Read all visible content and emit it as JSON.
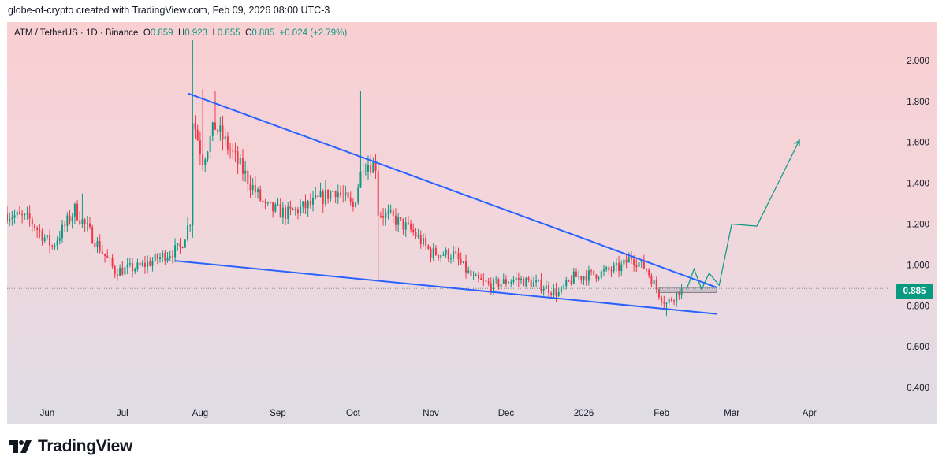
{
  "header": {
    "attribution": "globe-of-crypto created with TradingView.com, Feb 09, 2026 08:00 UTC-3"
  },
  "legend": {
    "symbol": "ATM / TetherUS · 1D · Binance",
    "open_label": "O",
    "open": "0.859",
    "high_label": "H",
    "high": "0.923",
    "low_label": "L",
    "low": "0.855",
    "close_label": "C",
    "close": "0.885",
    "change": "+0.024 (+2.79%)"
  },
  "last_price": "0.885",
  "footer": {
    "brand": "TradingView"
  },
  "colors": {
    "up": "#089981",
    "down": "#f23645",
    "trendline": "#2962ff",
    "projection": "#089981"
  },
  "chart_data": {
    "type": "candlestick",
    "y_ticks": [
      "2.000",
      "1.800",
      "1.600",
      "1.400",
      "1.200",
      "1.000",
      "0.800",
      "0.600",
      "0.400"
    ],
    "y_tick_values": [
      2.0,
      1.8,
      1.6,
      1.4,
      1.2,
      1.0,
      0.8,
      0.6,
      0.4
    ],
    "x_ticks": [
      "Jun",
      "Jul",
      "Aug",
      "Sep",
      "Oct",
      "Nov",
      "Dec",
      "2026",
      "Feb",
      "Mar",
      "Apr"
    ],
    "x_tick_dates": [
      "2025-06-01",
      "2025-07-01",
      "2025-08-01",
      "2025-09-01",
      "2025-10-01",
      "2025-11-01",
      "2025-12-01",
      "2026-01-01",
      "2026-02-01",
      "2026-03-01",
      "2026-04-01"
    ],
    "ylim": [
      0.35,
      2.15
    ],
    "date_range": [
      "2025-05-16",
      "2026-04-30"
    ],
    "grid": false,
    "price_anchors": [
      [
        "2025-05-16",
        1.25
      ],
      [
        "2025-05-25",
        1.22
      ],
      [
        "2025-06-03",
        1.09
      ],
      [
        "2025-06-12",
        1.27
      ],
      [
        "2025-06-20",
        1.12
      ],
      [
        "2025-06-28",
        0.97
      ],
      [
        "2025-07-08",
        0.99
      ],
      [
        "2025-07-18",
        1.05
      ],
      [
        "2025-07-24",
        1.08
      ],
      [
        "2025-07-28",
        1.22
      ],
      [
        "2025-07-29",
        1.72
      ],
      [
        "2025-08-02",
        1.52
      ],
      [
        "2025-08-07",
        1.68
      ],
      [
        "2025-08-12",
        1.58
      ],
      [
        "2025-08-20",
        1.42
      ],
      [
        "2025-08-27",
        1.28
      ],
      [
        "2025-09-05",
        1.25
      ],
      [
        "2025-09-15",
        1.3
      ],
      [
        "2025-09-24",
        1.37
      ],
      [
        "2025-10-01",
        1.28
      ],
      [
        "2025-10-05",
        1.5
      ],
      [
        "2025-10-10",
        1.49
      ],
      [
        "2025-10-11",
        1.26
      ],
      [
        "2025-10-18",
        1.22
      ],
      [
        "2025-10-25",
        1.16
      ],
      [
        "2025-11-01",
        1.06
      ],
      [
        "2025-11-10",
        1.05
      ],
      [
        "2025-11-18",
        0.93
      ],
      [
        "2025-11-25",
        0.9
      ],
      [
        "2025-12-05",
        0.93
      ],
      [
        "2025-12-15",
        0.9
      ],
      [
        "2025-12-22",
        0.86
      ],
      [
        "2025-12-28",
        0.94
      ],
      [
        "2026-01-08",
        0.96
      ],
      [
        "2026-01-16",
        0.99
      ],
      [
        "2026-01-20",
        1.04
      ],
      [
        "2026-01-26",
        0.98
      ],
      [
        "2026-01-31",
        0.86
      ],
      [
        "2026-02-03",
        0.81
      ],
      [
        "2026-02-09",
        0.885
      ]
    ],
    "spikes": [
      [
        "2025-07-29",
        2.1
      ],
      [
        "2025-08-02",
        1.86
      ],
      [
        "2025-08-07",
        1.85
      ],
      [
        "2025-10-04",
        1.85
      ],
      [
        "2025-10-11",
        0.93
      ],
      [
        "2025-06-15",
        1.35
      ],
      [
        "2026-02-03",
        0.75
      ]
    ],
    "trendlines": [
      {
        "name": "upper",
        "points": [
          [
            "2025-07-27",
            1.84
          ],
          [
            "2026-02-23",
            0.89
          ]
        ]
      },
      {
        "name": "lower",
        "points": [
          [
            "2025-07-22",
            1.02
          ],
          [
            "2026-02-23",
            0.76
          ]
        ]
      }
    ],
    "projection": {
      "points": [
        [
          "2026-02-11",
          0.88
        ],
        [
          "2026-02-14",
          0.98
        ],
        [
          "2026-02-17",
          0.88
        ],
        [
          "2026-02-20",
          0.96
        ],
        [
          "2026-02-24",
          0.9
        ],
        [
          "2026-03-01",
          1.2
        ],
        [
          "2026-03-11",
          1.19
        ],
        [
          "2026-03-28",
          1.61
        ]
      ]
    },
    "box": {
      "from": "2026-01-31",
      "to": "2026-02-23",
      "low": 0.865,
      "high": 0.89
    },
    "last_price_line": 0.885
  }
}
